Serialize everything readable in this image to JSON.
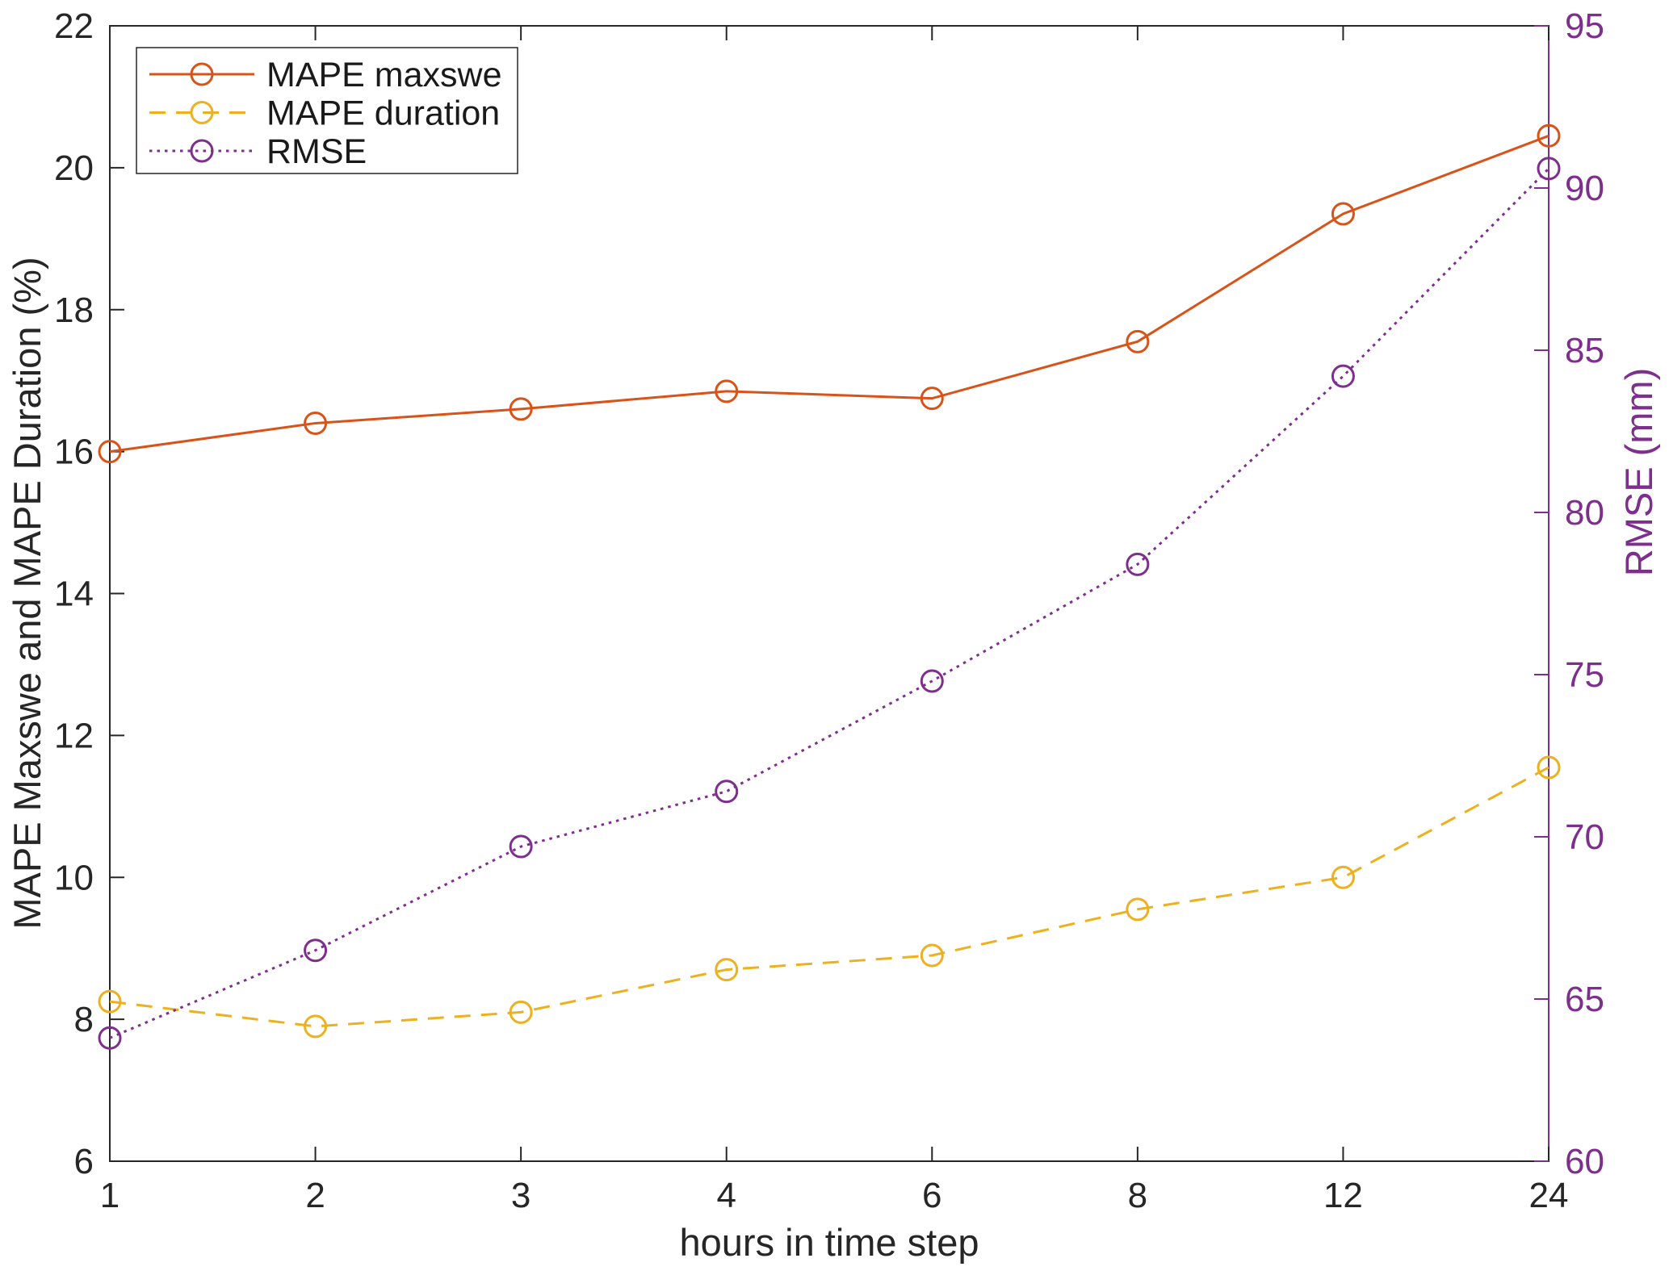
{
  "chart_data": {
    "type": "line",
    "title": "",
    "xlabel": "hours in time step",
    "ylabel_left": "MAPE Maxswe and MAPE Duration (%)",
    "ylabel_right": "RMSE (mm)",
    "categories": [
      "1",
      "2",
      "3",
      "4",
      "6",
      "8",
      "12",
      "24"
    ],
    "grid": false,
    "legend_position": "top-left-inside",
    "frame_color": "#262626",
    "background_color": "#ffffff",
    "left_axis": {
      "min": 6,
      "max": 22,
      "ticks": [
        6,
        8,
        10,
        12,
        14,
        16,
        18,
        20,
        22
      ],
      "color": "#262626"
    },
    "right_axis": {
      "min": 60,
      "max": 95,
      "ticks": [
        60,
        65,
        70,
        75,
        80,
        85,
        90,
        95
      ],
      "color": "#7E2F8E"
    },
    "series": [
      {
        "name": "MAPE maxswe",
        "axis": "left",
        "color": "#D95319",
        "line_style": "solid",
        "marker": "circle",
        "values": [
          16.0,
          16.4,
          16.6,
          16.85,
          16.75,
          17.55,
          19.35,
          20.45
        ]
      },
      {
        "name": "MAPE duration",
        "axis": "left",
        "color": "#EDB120",
        "line_style": "dashed",
        "marker": "circle",
        "values": [
          8.25,
          7.9,
          8.1,
          8.7,
          8.9,
          9.55,
          10.0,
          11.55
        ]
      },
      {
        "name": "RMSE",
        "axis": "right",
        "color": "#7E2F8E",
        "line_style": "dotted",
        "marker": "circle",
        "values": [
          63.8,
          66.5,
          69.7,
          71.4,
          74.8,
          78.4,
          84.2,
          90.6
        ]
      }
    ]
  }
}
